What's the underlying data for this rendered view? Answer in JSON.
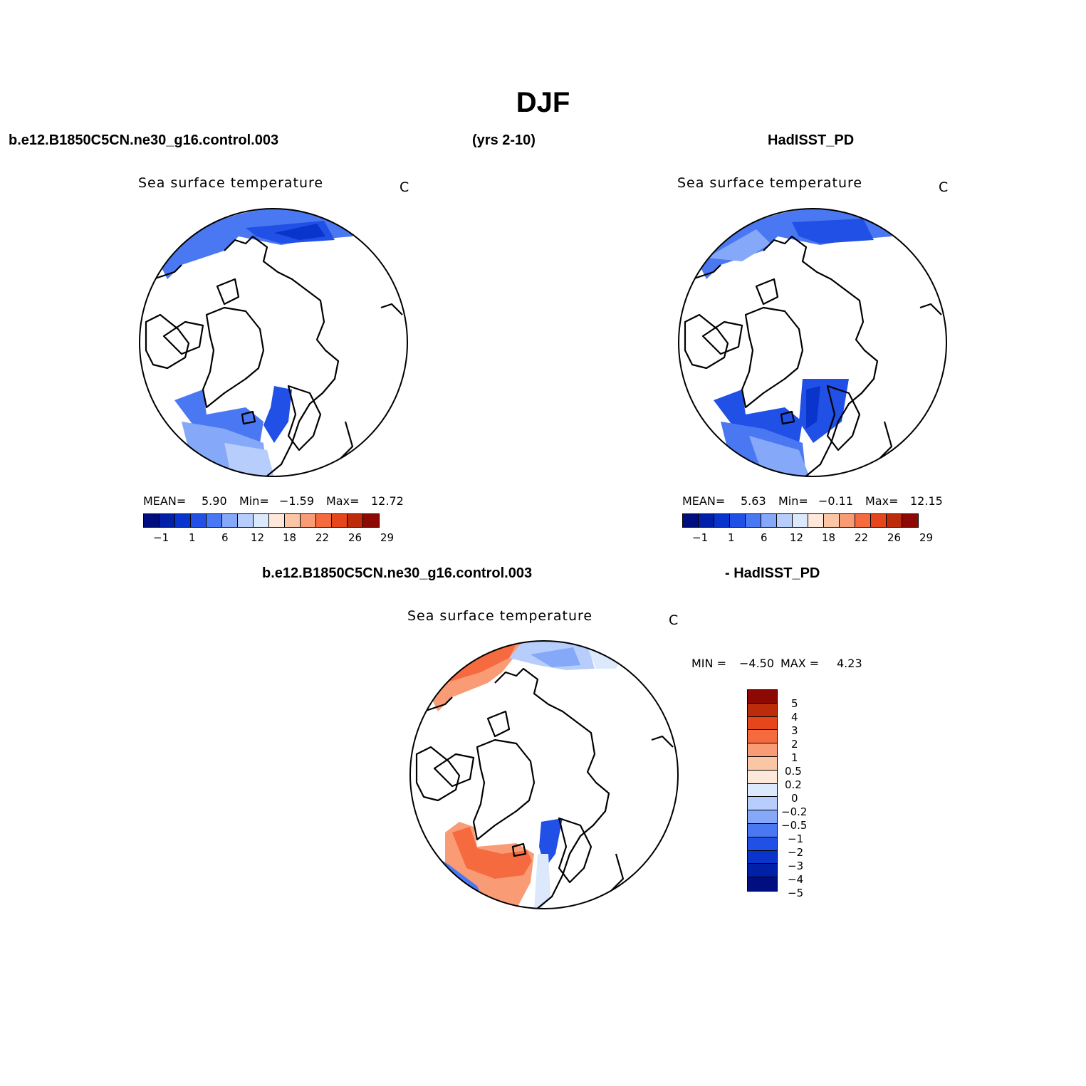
{
  "figure": {
    "title": "DJF",
    "case_name": "b.e12.B1850C5CN.ne30_g16.control.003",
    "years": "(yrs 2-10)",
    "obs_name": "HadISST_PD",
    "diff_case_name": "b.e12.B1850C5CN.ne30_g16.control.003",
    "diff_obs_name": "- HadISST_PD"
  },
  "panels": [
    {
      "title": "Sea surface temperature",
      "units": "C",
      "mean_label": "MEAN=",
      "mean_value": "5.90",
      "min_label": "Min=",
      "min_value": "−1.59",
      "max_label": "Max=",
      "max_value": "12.72"
    },
    {
      "title": "Sea surface temperature",
      "units": "C",
      "mean_label": "MEAN=",
      "mean_value": "5.63",
      "min_label": "Min=",
      "min_value": "−0.11",
      "max_label": "Max=",
      "max_value": "12.15"
    },
    {
      "title": "Sea surface temperature",
      "units": "C",
      "min_label": "MIN =",
      "min_value": "−4.50",
      "max_label": "MAX =",
      "max_value": "4.23"
    }
  ],
  "colorbar_abs": {
    "colors": [
      "#000e7f",
      "#0020a8",
      "#0a35cc",
      "#2050e5",
      "#4a78f2",
      "#85a8f8",
      "#b7cdfb",
      "#dce9fc",
      "#fde8da",
      "#fbc6a6",
      "#f99c76",
      "#f66a3f",
      "#e6461b",
      "#bd2c0a",
      "#8c0904"
    ],
    "tick_labels": [
      "−1",
      "1",
      "6",
      "12",
      "18",
      "22",
      "26",
      "29"
    ]
  },
  "colorbar_diff": {
    "colors": [
      "#8c0904",
      "#bd2c0a",
      "#e6461b",
      "#f66a3f",
      "#f99c76",
      "#fbc6a6",
      "#fde8da",
      "#dce9fc",
      "#b7cdfb",
      "#85a8f8",
      "#4a78f2",
      "#2050e5",
      "#0a35cc",
      "#0020a8",
      "#000e7f"
    ],
    "tick_labels": [
      "5",
      "4",
      "3",
      "2",
      "1",
      "0.5",
      "0.2",
      "0",
      "−0.2",
      "−0.5",
      "−1",
      "−2",
      "−3",
      "−4",
      "−5"
    ]
  }
}
